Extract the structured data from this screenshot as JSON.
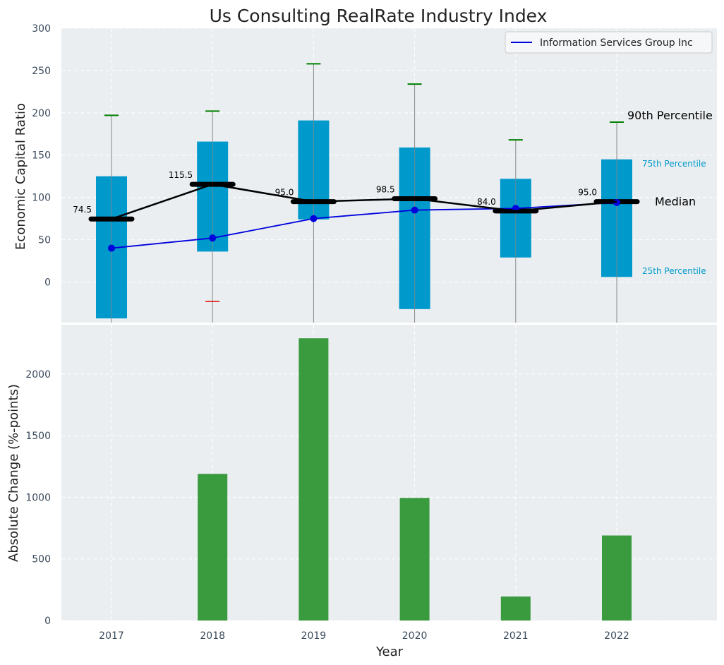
{
  "chart_data": [
    {
      "type": "box",
      "title": "Us Consulting RealRate Industry Index",
      "ylabel": "Economic Capital Ratio",
      "ylim": [
        -48,
        300
      ],
      "yticks": [
        0,
        50,
        100,
        150,
        200,
        250,
        300
      ],
      "categories": [
        "2017",
        "2018",
        "2019",
        "2020",
        "2021",
        "2022"
      ],
      "boxes": [
        {
          "year": "2017",
          "p25": -43,
          "p75": 125,
          "median": 74.5,
          "p90": 197,
          "p10": null,
          "median_label": "74.5"
        },
        {
          "year": "2018",
          "p25": 36,
          "p75": 166,
          "median": 115.5,
          "p90": 202,
          "p10": -23,
          "median_label": "115.5"
        },
        {
          "year": "2019",
          "p25": 74,
          "p75": 191,
          "median": 95.0,
          "p90": 258,
          "p10": null,
          "median_label": "95.0"
        },
        {
          "year": "2020",
          "p25": -32,
          "p75": 159,
          "median": 98.5,
          "p90": 234,
          "p10": null,
          "median_label": "98.5"
        },
        {
          "year": "2021",
          "p25": 29,
          "p75": 122,
          "median": 84.0,
          "p90": 168,
          "p10": null,
          "median_label": "84.0"
        },
        {
          "year": "2022",
          "p25": 6,
          "p75": 145,
          "median": 95.0,
          "p90": 189,
          "p10": null,
          "median_label": "95.0"
        }
      ],
      "series": [
        {
          "name": "Information Services Group Inc",
          "color": "#0000dd",
          "values": [
            40,
            52,
            75,
            85,
            87,
            94
          ]
        }
      ],
      "annotations": {
        "p90": "90th Percentile",
        "p75": "75th Percentile",
        "median": "Median",
        "p25": "25th Percentile"
      },
      "colors": {
        "box": "#0099cc",
        "median": "#000000",
        "p90_cap": "#008000",
        "p10_cap": "#dd0000",
        "whisker": "#888888",
        "annot75_25": "#0099cc"
      },
      "legend_position": "upper right",
      "grid": true
    },
    {
      "type": "bar",
      "xlabel": "Year",
      "ylabel": "Absolute Change (%-points)",
      "ylim": [
        0,
        2400
      ],
      "yticks": [
        0,
        500,
        1000,
        1500,
        2000
      ],
      "categories": [
        "2017",
        "2018",
        "2019",
        "2020",
        "2021",
        "2022"
      ],
      "values": [
        0,
        1190,
        2290,
        995,
        195,
        690
      ],
      "color": "#3a9a3e",
      "grid": true
    }
  ]
}
